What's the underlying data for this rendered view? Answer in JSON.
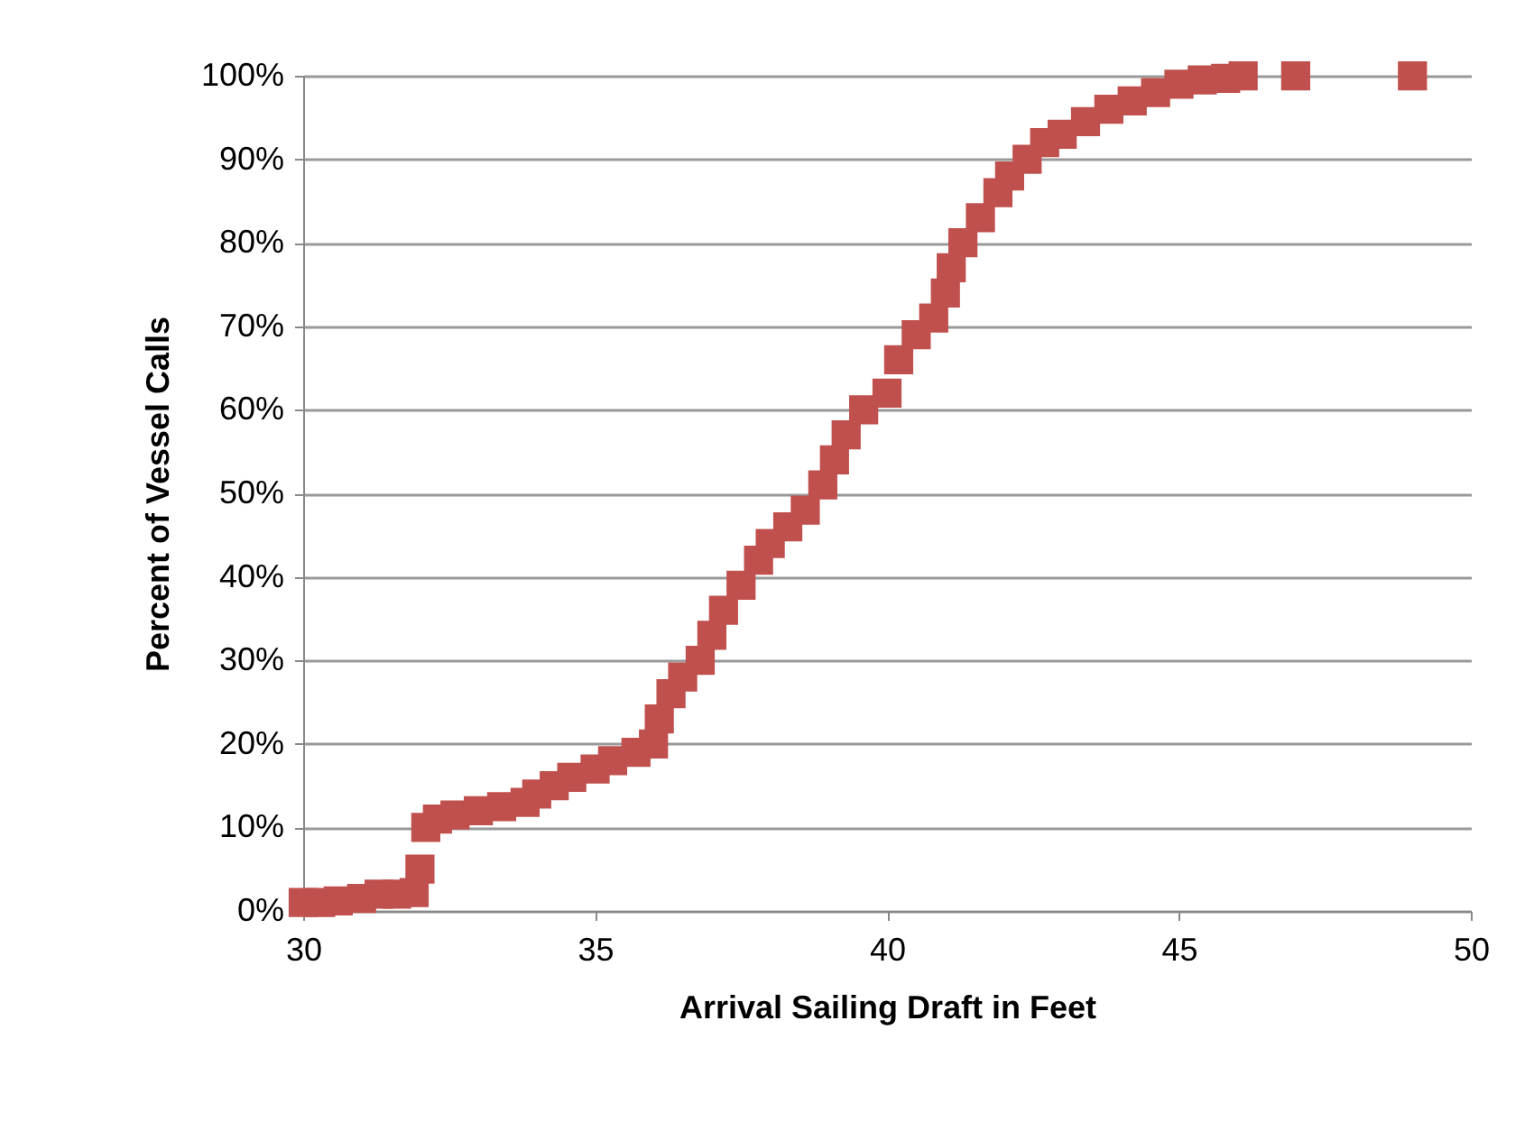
{
  "chart_data": {
    "type": "scatter",
    "xlabel": "Arrival Sailing Draft in Feet",
    "ylabel": "Percent of Vessel Calls",
    "marker": "square",
    "grid": "y",
    "xlim": [
      30,
      50
    ],
    "xticks": [
      30,
      35,
      40,
      45,
      50
    ],
    "ylim": [
      0,
      100
    ],
    "yticks": [
      {
        "value": 0,
        "label": "0%"
      },
      {
        "value": 10,
        "label": "10%"
      },
      {
        "value": 20,
        "label": "20%"
      },
      {
        "value": 30,
        "label": "30%"
      },
      {
        "value": 40,
        "label": "40%"
      },
      {
        "value": 50,
        "label": "50%"
      },
      {
        "value": 60,
        "label": "60%"
      },
      {
        "value": 70,
        "label": "70%"
      },
      {
        "value": 80,
        "label": "80%"
      },
      {
        "value": 90,
        "label": "90%"
      },
      {
        "value": 100,
        "label": "100%"
      }
    ],
    "x": [
      30.0,
      30.3,
      30.6,
      31.0,
      31.3,
      31.6,
      31.9,
      32.0,
      32.1,
      32.3,
      32.6,
      33.0,
      33.4,
      33.8,
      34.0,
      34.3,
      34.6,
      35.0,
      35.3,
      35.7,
      36.0,
      36.1,
      36.3,
      36.5,
      36.8,
      37.0,
      37.2,
      37.5,
      37.8,
      38.0,
      38.3,
      38.6,
      38.9,
      39.1,
      39.3,
      39.6,
      40.0,
      40.2,
      40.5,
      40.8,
      41.0,
      41.1,
      41.3,
      41.6,
      41.9,
      42.1,
      42.4,
      42.7,
      43.0,
      43.4,
      43.8,
      44.2,
      44.6,
      45.0,
      45.4,
      45.8,
      46.1,
      47.0,
      49.0
    ],
    "series": [
      {
        "color": "#c0504d",
        "values": [
          1,
          1,
          1.2,
          1.5,
          2,
          2,
          2.2,
          5,
          10,
          11,
          11.5,
          12,
          12.5,
          13,
          14,
          15,
          16,
          17,
          18,
          19,
          20,
          23,
          26,
          28,
          30,
          33,
          36,
          39,
          42,
          44,
          46,
          48,
          51,
          54,
          57,
          60,
          62,
          66,
          69,
          71,
          74,
          77,
          80,
          83,
          86,
          88,
          90,
          92,
          93,
          94.5,
          96,
          97,
          98,
          99,
          99.5,
          99.7,
          100,
          100,
          100
        ]
      }
    ]
  }
}
